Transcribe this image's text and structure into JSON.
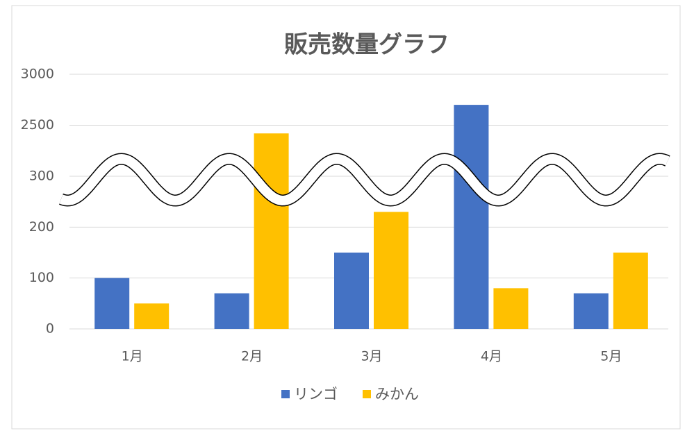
{
  "chart_data": {
    "type": "bar",
    "title": "販売数量グラフ",
    "categories": [
      "1月",
      "2月",
      "3月",
      "4月",
      "5月"
    ],
    "series": [
      {
        "name": "リンゴ",
        "color": "#4472c4",
        "values": [
          100,
          70,
          150,
          2700,
          70
        ]
      },
      {
        "name": "みかん",
        "color": "#ffc000",
        "values": [
          50,
          2420,
          230,
          80,
          150
        ]
      }
    ],
    "ylim": [
      0,
      3000
    ],
    "axis_break": [
      300,
      2000
    ],
    "yticks": [
      0,
      100,
      200,
      300,
      2500,
      3000
    ],
    "grid": true,
    "legend": "bottom"
  }
}
